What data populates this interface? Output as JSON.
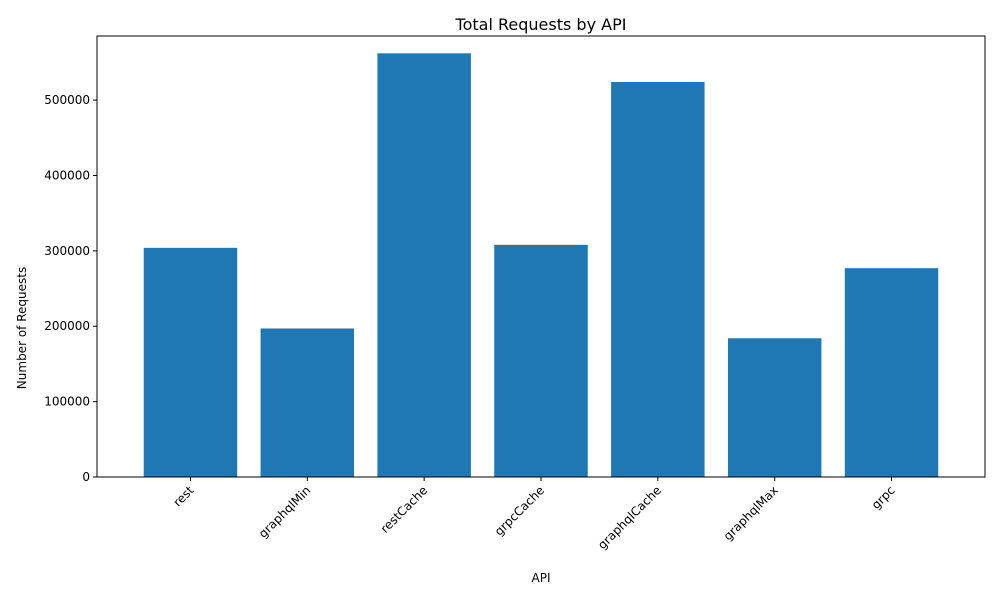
{
  "chart_data": {
    "type": "bar",
    "title": "Total Requests by API",
    "xlabel": "API",
    "ylabel": "Number of Requests",
    "categories": [
      "rest",
      "graphqlMin",
      "restCache",
      "grpcCache",
      "graphqlCache",
      "graphqlMax",
      "grpc"
    ],
    "values": [
      304000,
      197000,
      562000,
      308000,
      524000,
      184000,
      277000
    ],
    "ylim": [
      0,
      585000
    ],
    "yticks": [
      0,
      100000,
      200000,
      300000,
      400000,
      500000
    ],
    "ytick_labels": [
      "0",
      "100000",
      "200000",
      "300000",
      "400000",
      "500000"
    ],
    "grid": false,
    "legend": "none",
    "bar_color": "#1f77b4",
    "xtick_rotation_deg": 45
  }
}
